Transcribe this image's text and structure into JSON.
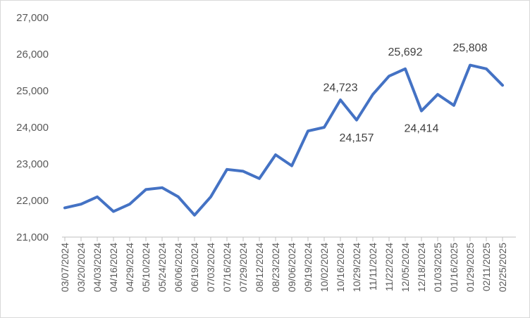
{
  "chart_data": {
    "type": "line",
    "title": "",
    "xlabel": "",
    "ylabel": "",
    "ylim": [
      21000,
      27000
    ],
    "yticks": [
      "21,000",
      "22,000",
      "23,000",
      "24,000",
      "25,000",
      "26,000",
      "27,000"
    ],
    "ytick_values": [
      21000,
      22000,
      23000,
      24000,
      25000,
      26000,
      27000
    ],
    "xticks": [
      "03/07/2024",
      "03/20/2024",
      "04/03/2024",
      "04/16/2024",
      "04/29/2024",
      "05/10/2024",
      "05/24/2024",
      "06/06/2024",
      "06/19/2024",
      "07/03/2024",
      "07/16/2024",
      "07/29/2024",
      "08/12/2024",
      "08/23/2024",
      "09/06/2024",
      "09/19/2024",
      "10/02/2024",
      "10/16/2024",
      "10/29/2024",
      "11/11/2024",
      "11/22/2024",
      "12/05/2024",
      "12/18/2024",
      "01/03/2025",
      "01/16/2025",
      "01/29/2025",
      "02/11/2025",
      "02/25/2025"
    ],
    "grid": false,
    "legend": "none",
    "line_color": "#4472C4",
    "series": [
      {
        "x": [
          "03/07/2024",
          "03/20/2024",
          "04/03/2024",
          "04/16/2024",
          "04/29/2024",
          "05/10/2024",
          "05/24/2024",
          "06/06/2024",
          "06/19/2024",
          "07/03/2024",
          "07/16/2024",
          "07/29/2024",
          "08/12/2024",
          "08/23/2024",
          "09/06/2024",
          "09/19/2024",
          "10/02/2024",
          "10/16/2024",
          "10/29/2024",
          "11/11/2024",
          "11/22/2024",
          "12/05/2024",
          "12/18/2024",
          "01/03/2025",
          "01/16/2025",
          "01/29/2025",
          "02/11/2025",
          "02/25/2025"
        ],
        "values": [
          21800,
          21900,
          22100,
          21700,
          21900,
          22300,
          22350,
          22100,
          21600,
          22100,
          22850,
          22800,
          22600,
          23250,
          22950,
          23900,
          24000,
          24750,
          24200,
          24900,
          25400,
          25600,
          24450,
          24900,
          24600,
          25700,
          25600,
          25150
        ]
      }
    ],
    "annotations": [
      {
        "text": "24,723",
        "x": "10/16/2024",
        "y": 24723,
        "position": "above"
      },
      {
        "text": "24,157",
        "x": "10/29/2024",
        "y": 24157,
        "position": "below"
      },
      {
        "text": "25,692",
        "x": "12/05/2024",
        "y": 25692,
        "position": "above"
      },
      {
        "text": "24,414",
        "x": "12/18/2024",
        "y": 24414,
        "position": "below"
      },
      {
        "text": "25,808",
        "x": "01/29/2025",
        "y": 25808,
        "position": "above"
      }
    ]
  }
}
